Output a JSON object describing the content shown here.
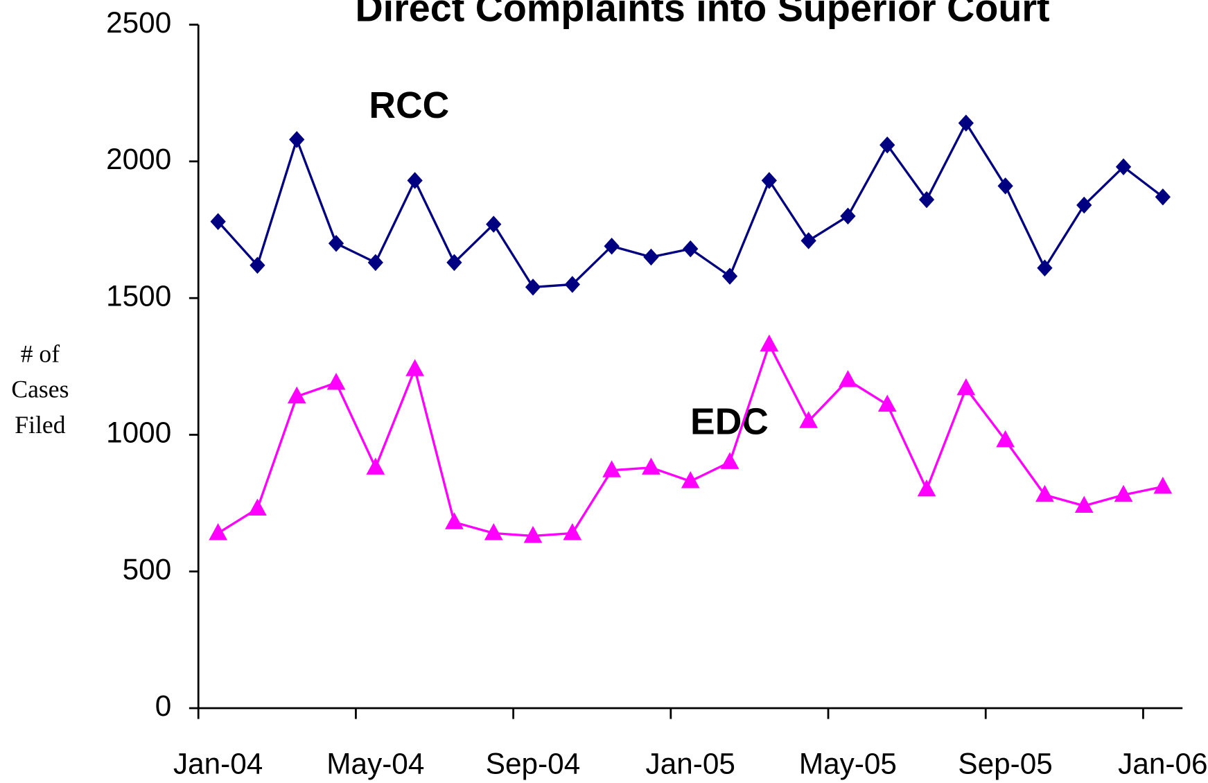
{
  "chart_data": {
    "type": "line",
    "title": "Direct Complaints into Superior Court",
    "y_label": [
      "# of",
      "Cases",
      "Filed"
    ],
    "categories": [
      "Jan-04",
      null,
      null,
      null,
      "May-04",
      null,
      null,
      null,
      "Sep-04",
      null,
      null,
      null,
      "Jan-05",
      null,
      null,
      null,
      "May-05",
      null,
      null,
      null,
      "Sep-05",
      null,
      null,
      null,
      "Jan-06"
    ],
    "series": [
      {
        "name": "RCC",
        "color": "#000080",
        "marker": "diamond",
        "values": [
          1780,
          1620,
          2080,
          1700,
          1630,
          1930,
          1630,
          1770,
          1540,
          1550,
          1690,
          1650,
          1680,
          1580,
          1930,
          1710,
          1800,
          2060,
          1860,
          2140,
          1910,
          1610,
          1840,
          1980,
          1870
        ]
      },
      {
        "name": "EDC",
        "color": "#ff00ff",
        "marker": "triangle",
        "values": [
          640,
          730,
          1140,
          1190,
          880,
          1240,
          680,
          640,
          630,
          640,
          870,
          880,
          830,
          900,
          1330,
          1050,
          1200,
          1110,
          800,
          1170,
          980,
          780,
          740,
          780,
          810
        ]
      }
    ],
    "annotations": [
      "RCC",
      "EDC"
    ],
    "ylim": [
      0,
      2500
    ],
    "yticks": [
      0,
      500,
      1000,
      1500,
      2000,
      2500
    ],
    "grid": false
  }
}
